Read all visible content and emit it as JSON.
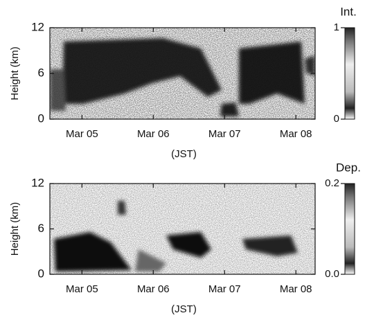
{
  "chart_data": [
    {
      "type": "heatmap",
      "ylabel": "Height (km)",
      "xlabel": "(JST)",
      "ylim": [
        0,
        12
      ],
      "yticks": [
        0,
        6,
        12
      ],
      "xlim": [
        4.55,
        8.27
      ],
      "xticks": [
        {
          "value": 5,
          "label": "Mar 05"
        },
        {
          "value": 6,
          "label": "Mar 06"
        },
        {
          "value": 7,
          "label": "Mar 07"
        },
        {
          "value": 8,
          "label": "Mar 08"
        }
      ],
      "colorbar": {
        "label": "Int.",
        "lim": [
          0,
          1
        ],
        "ticks": [
          0,
          1
        ]
      }
    },
    {
      "type": "heatmap",
      "ylabel": "Height (km)",
      "xlabel": "(JST)",
      "ylim": [
        0,
        12
      ],
      "yticks": [
        0,
        6,
        12
      ],
      "xlim": [
        4.55,
        8.27
      ],
      "xticks": [
        {
          "value": 5,
          "label": "Mar 05"
        },
        {
          "value": 6,
          "label": "Mar 06"
        },
        {
          "value": 7,
          "label": "Mar 07"
        },
        {
          "value": 8,
          "label": "Mar 08"
        }
      ],
      "colorbar": {
        "label": "Dep.",
        "lim": [
          0,
          0.2
        ],
        "ticks": [
          {
            "value": 0,
            "label": "0.0"
          },
          {
            "value": 0.2,
            "label": "0.2"
          }
        ]
      }
    }
  ]
}
